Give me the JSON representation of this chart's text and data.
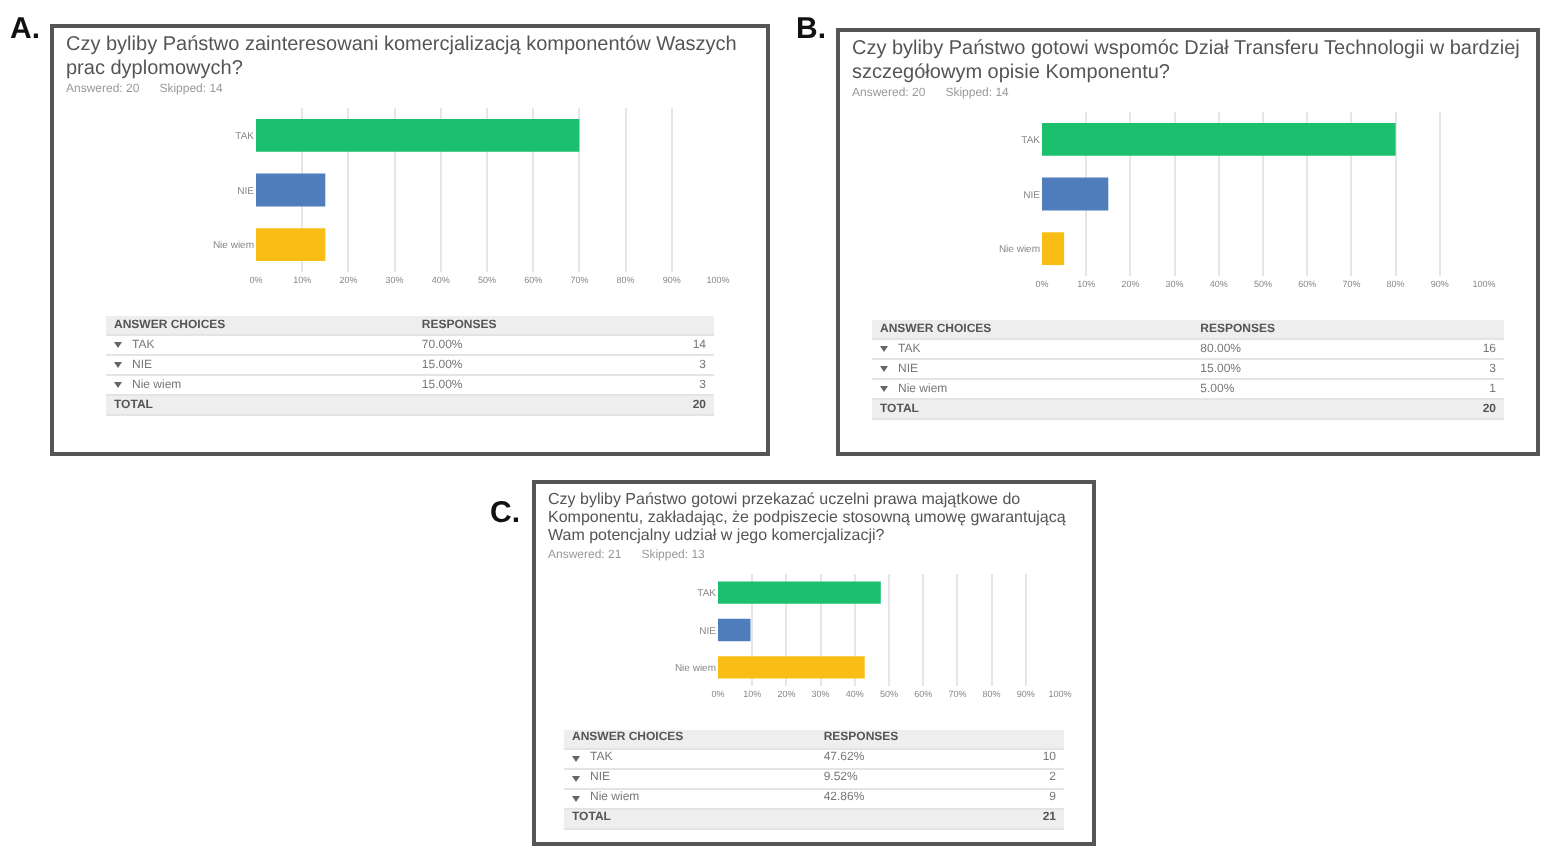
{
  "chart_data": [
    {
      "type": "bar",
      "orientation": "horizontal",
      "title": "Czy byliby Państwo zainteresowani komercjalizacją komponentów Waszych prac dyplomowych?",
      "categories": [
        "TAK",
        "NIE",
        "Nie wiem"
      ],
      "values": [
        70,
        15,
        15
      ],
      "colors": [
        "#1bbf6e",
        "#507dbc",
        "#f9be15"
      ],
      "xlim": [
        0,
        100
      ],
      "xticks": [
        {
          "value": 0,
          "label": "0%"
        },
        {
          "value": 10,
          "label": "10%"
        },
        {
          "value": 20,
          "label": "20%"
        },
        {
          "value": 30,
          "label": "30%"
        },
        {
          "value": 40,
          "label": "40%"
        },
        {
          "value": 50,
          "label": "50%"
        },
        {
          "value": 60,
          "label": "60%"
        },
        {
          "value": 70,
          "label": "70%"
        },
        {
          "value": 80,
          "label": "80%"
        },
        {
          "value": 90,
          "label": "90%"
        },
        {
          "value": 100,
          "label": "100%"
        }
      ],
      "grid": "x",
      "annotations": [
        "A.",
        "Answered: 20",
        "Skipped: 14",
        "ANSWER CHOICES",
        "RESPONSES",
        "70.00%",
        "15.00%",
        "15.00%",
        "14",
        "3",
        "3",
        "TOTAL",
        "20"
      ]
    },
    {
      "type": "bar",
      "orientation": "horizontal",
      "title": "Czy byliby Państwo gotowi wspomóc Dział Transferu Technologii w bardziej szczegółowym opisie Komponentu?",
      "categories": [
        "TAK",
        "NIE",
        "Nie wiem"
      ],
      "values": [
        80,
        15,
        5
      ],
      "colors": [
        "#1bbf6e",
        "#507dbc",
        "#f9be15"
      ],
      "xlim": [
        0,
        100
      ],
      "xticks": [
        {
          "value": 0,
          "label": "0%"
        },
        {
          "value": 10,
          "label": "10%"
        },
        {
          "value": 20,
          "label": "20%"
        },
        {
          "value": 30,
          "label": "30%"
        },
        {
          "value": 40,
          "label": "40%"
        },
        {
          "value": 50,
          "label": "50%"
        },
        {
          "value": 60,
          "label": "60%"
        },
        {
          "value": 70,
          "label": "70%"
        },
        {
          "value": 80,
          "label": "80%"
        },
        {
          "value": 90,
          "label": "90%"
        },
        {
          "value": 100,
          "label": "100%"
        }
      ],
      "grid": "x",
      "annotations": [
        "B.",
        "Answered: 20",
        "Skipped: 14",
        "ANSWER CHOICES",
        "RESPONSES",
        "80.00%",
        "15.00%",
        "5.00%",
        "16",
        "3",
        "1",
        "TOTAL",
        "20"
      ]
    },
    {
      "type": "bar",
      "orientation": "horizontal",
      "title": "Czy byliby Państwo gotowi przekazać uczelni prawa majątkowe do Komponentu, zakładając, że podpiszecie stosowną umowę gwarantującą Wam potencjalny udział w jego komercjalizacji?",
      "categories": [
        "TAK",
        "NIE",
        "Nie wiem"
      ],
      "values": [
        47.6,
        9.5,
        42.9
      ],
      "colors": [
        "#1bbf6e",
        "#507dbc",
        "#f9be15"
      ],
      "xlim": [
        0,
        100
      ],
      "xticks": [
        {
          "value": 0,
          "label": "0%"
        },
        {
          "value": 10,
          "label": "10%"
        },
        {
          "value": 20,
          "label": "20%"
        },
        {
          "value": 30,
          "label": "30%"
        },
        {
          "value": 40,
          "label": "40%"
        },
        {
          "value": 50,
          "label": "50%"
        },
        {
          "value": 60,
          "label": "60%"
        },
        {
          "value": 70,
          "label": "70%"
        },
        {
          "value": 80,
          "label": "80%"
        },
        {
          "value": 90,
          "label": "90%"
        },
        {
          "value": 100,
          "label": "100%"
        }
      ],
      "grid": "x",
      "annotations": [
        "C.",
        "Answered: 21",
        "Skipped: 13",
        "ANSWER CHOICES",
        "RESPONSES",
        "47.62%",
        "9.52%",
        "42.86%",
        "10",
        "2",
        "9",
        "TOTAL",
        "21"
      ]
    }
  ]
}
